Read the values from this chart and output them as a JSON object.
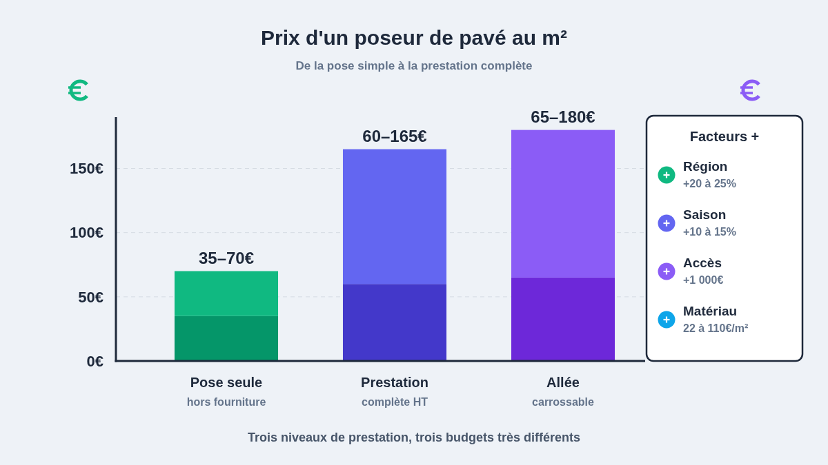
{
  "chart_data": [
    {
      "type": "bar",
      "title": "Prix d'un poseur de pavé au m²",
      "subtitle": "De la pose simple à la prestation complète",
      "categories": [
        "Pose seule\nhors fourniture",
        "Prestation\ncomplète HT",
        "Allée\ncarrossable"
      ],
      "stacked": true,
      "series": [
        {
          "values": [
            35,
            60,
            65
          ],
          "colors": [
            "#059669",
            "#4338ca",
            "#6d28d9"
          ]
        },
        {
          "values": [
            35,
            105,
            115
          ],
          "colors": [
            "#10b981",
            "#6366f1",
            "#8b5cf6"
          ]
        }
      ],
      "totals": [
        "35–70€",
        "60–165€",
        "65–180€"
      ],
      "ylim": [
        0,
        190
      ],
      "yticks": [
        {
          "value": 0,
          "label": "0€"
        },
        {
          "value": 50,
          "label": "50€"
        },
        {
          "value": 100,
          "label": "100€"
        },
        {
          "value": 150,
          "label": "150€"
        }
      ],
      "grid": "y",
      "annotations": [
        "Trois niveaux de prestation, trois budgets très différents"
      ]
    },
    {
      "type": "other",
      "title": "Facteurs +",
      "annotations": [
        "Région\n+20 à 25%",
        "Saison\n+10 à 15%",
        "Accès\n+1 000€",
        "Matériau\n22 à 110€/m²"
      ]
    }
  ]
}
